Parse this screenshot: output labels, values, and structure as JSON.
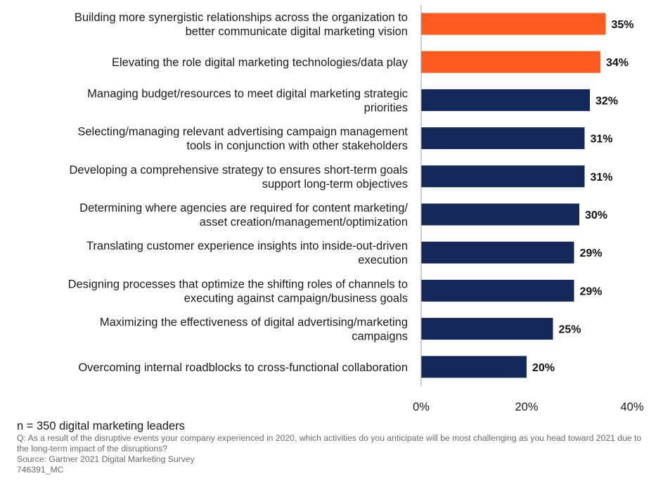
{
  "chart_data": {
    "type": "bar",
    "orientation": "horizontal",
    "categories": [
      [
        "Building more synergistic relationships across the organization to",
        "better communicate digital marketing vision"
      ],
      [
        "Elevating the role digital marketing technologies/data play"
      ],
      [
        "Managing budget/resources to meet digital marketing strategic",
        "priorities"
      ],
      [
        "Selecting/managing relevant advertising campaign management",
        "tools in conjunction with other stakeholders"
      ],
      [
        "Developing a comprehensive strategy to ensures short-term goals",
        "support long-term objectives"
      ],
      [
        "Determining where agencies are required for content marketing/",
        "asset creation/management/optimization"
      ],
      [
        "Translating customer experience insights into inside-out-driven",
        "execution"
      ],
      [
        "Designing processes that optimize the shifting roles of channels to",
        "executing against campaign/business goals"
      ],
      [
        "Maximizing the effectiveness of digital advertising/marketing",
        "campaigns"
      ],
      [
        "Overcoming internal roadblocks to cross-functional collaboration"
      ]
    ],
    "values": [
      35,
      34,
      32,
      31,
      31,
      30,
      29,
      29,
      25,
      20
    ],
    "data_labels": [
      "35%",
      "34%",
      "32%",
      "31%",
      "31%",
      "30%",
      "29%",
      "29%",
      "25%",
      "20%"
    ],
    "highlighted": [
      true,
      true,
      false,
      false,
      false,
      false,
      false,
      false,
      false,
      false
    ],
    "xlim": [
      0,
      40
    ],
    "xticks": [
      0,
      20,
      40
    ],
    "xtick_labels": [
      "0%",
      "20%",
      "40%"
    ],
    "colors": {
      "highlight": "#FF5A1F",
      "default": "#14285A",
      "axis": "#9a9a9a"
    },
    "grid": false
  },
  "footnotes": {
    "sample": "n = 350 digital marketing leaders",
    "question": "Q: As a result of the disruptive events your company experienced in 2020, which activities do you anticipate will be most challenging as you head toward 2021 due to the long-term impact of the disruptions?",
    "source": "Source: Gartner 2021 Digital Marketing Survey",
    "id": "746391_MC"
  }
}
